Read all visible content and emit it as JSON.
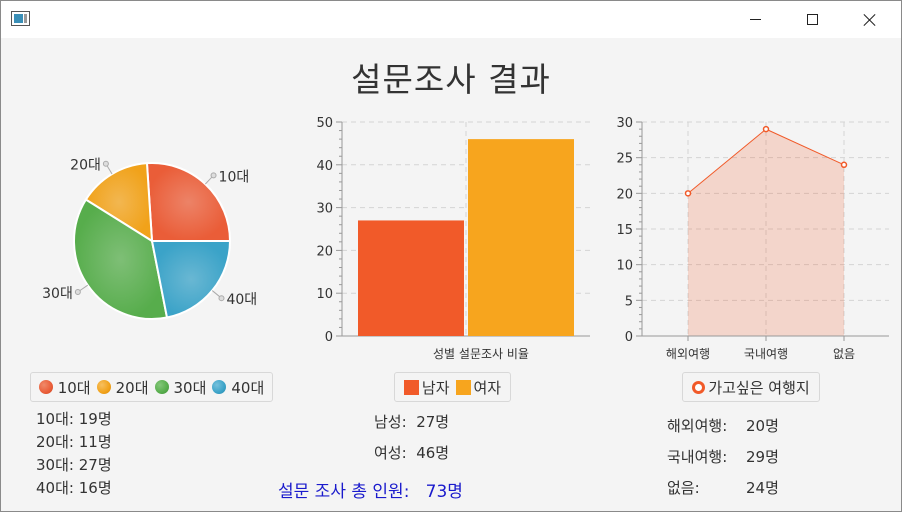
{
  "window": {
    "title": ""
  },
  "heading": "설문조사 결과",
  "colors": {
    "age10": "#ea5d38",
    "age20": "#f1a21a",
    "age30": "#57ad4c",
    "age40": "#3ba3c8",
    "male": "#f15a29",
    "female": "#f7a51e",
    "line": "#f15a29",
    "total_text": "#1a1acc"
  },
  "chart_data": [
    {
      "type": "pie",
      "categories": [
        "10대",
        "20대",
        "30대",
        "40대"
      ],
      "values": [
        19,
        11,
        27,
        16
      ],
      "legend": "bottom"
    },
    {
      "type": "bar",
      "xlabel": "성별 설문조사 비율",
      "categories": [
        "성별 설문조사 비율"
      ],
      "series": [
        {
          "name": "남자",
          "values": [
            27
          ]
        },
        {
          "name": "여자",
          "values": [
            46
          ]
        }
      ],
      "ylim": [
        0,
        50
      ],
      "yticks": [
        0,
        10,
        20,
        30,
        40,
        50
      ],
      "grid": true,
      "legend": "bottom"
    },
    {
      "type": "area",
      "categories": [
        "해외여행",
        "국내여행",
        "없음"
      ],
      "series": [
        {
          "name": "가고싶은 여행지",
          "values": [
            20,
            29,
            24
          ]
        }
      ],
      "ylim": [
        0,
        30
      ],
      "yticks": [
        0,
        5,
        10,
        15,
        20,
        25,
        30
      ],
      "grid": true,
      "legend": "bottom"
    }
  ],
  "age_stats": [
    {
      "label": "10대:",
      "value": "19명"
    },
    {
      "label": "20대:",
      "value": "11명"
    },
    {
      "label": "30대:",
      "value": "27명"
    },
    {
      "label": "40대:",
      "value": "16명"
    }
  ],
  "gender_stats": [
    {
      "label": "남성:",
      "value": "27명"
    },
    {
      "label": "여성:",
      "value": "46명"
    }
  ],
  "travel_stats": [
    {
      "label": "해외여행:",
      "value": "20명"
    },
    {
      "label": "국내여행:",
      "value": "29명"
    },
    {
      "label": "없음:",
      "value": "24명"
    }
  ],
  "total": {
    "label": "설문 조사 총 인원:",
    "value": "73명"
  }
}
